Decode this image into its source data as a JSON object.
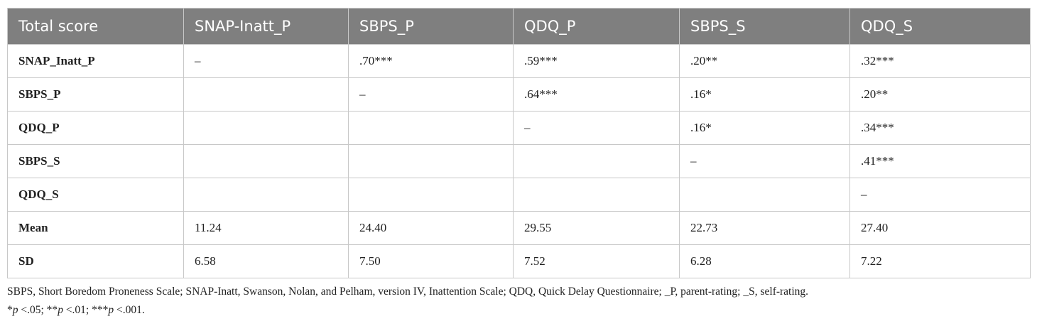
{
  "table": {
    "header": [
      "Total score",
      "SNAP-Inatt_P",
      "SBPS_P",
      "QDQ_P",
      "SBPS_S",
      "QDQ_S"
    ],
    "rows": [
      [
        "SNAP_Inatt_P",
        "–",
        ".70***",
        ".59***",
        ".20**",
        ".32***"
      ],
      [
        "SBPS_P",
        null,
        "–",
        ".64***",
        ".16*",
        ".20**"
      ],
      [
        "QDQ_P",
        null,
        null,
        "–",
        ".16*",
        ".34***"
      ],
      [
        "SBPS_S",
        null,
        null,
        null,
        "–",
        ".41***"
      ],
      [
        "QDQ_S",
        null,
        null,
        null,
        null,
        "–"
      ],
      [
        "Mean",
        "11.24",
        "24.40",
        "29.55",
        "22.73",
        "27.40"
      ],
      [
        "SD",
        "6.58",
        "7.50",
        "7.52",
        "6.28",
        "7.22"
      ]
    ]
  },
  "footnote": {
    "line1": "SBPS, Short Boredom Proneness Scale; SNAP-Inatt, Swanson, Nolan, and Pelham, version IV, Inattention Scale; QDQ, Quick Delay Questionnaire; _P, parent-rating; _S, self-rating.",
    "line2": [
      "*",
      "p",
      " <.05; **",
      "p",
      " <.01; ***",
      "p",
      " <.001."
    ]
  }
}
